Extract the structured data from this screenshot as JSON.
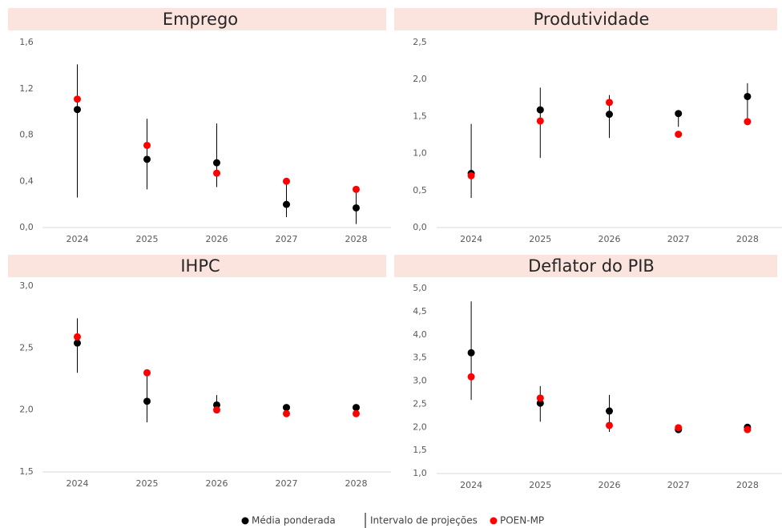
{
  "chart_data": [
    {
      "type": "dot-range",
      "title": "Emprego",
      "categories": [
        "2024",
        "2025",
        "2026",
        "2027",
        "2028"
      ],
      "series": [
        {
          "name": "Média ponderada",
          "color": "#000000",
          "values": [
            1.02,
            0.59,
            0.56,
            0.2,
            0.17
          ]
        },
        {
          "name": "Intervalo de projeções",
          "color": "#000000",
          "low": [
            0.26,
            0.33,
            0.35,
            0.09,
            0.03
          ],
          "high": [
            1.41,
            0.94,
            0.9,
            0.4,
            0.33
          ]
        },
        {
          "name": "POEN-MP",
          "color": "#ff0000",
          "values": [
            1.11,
            0.71,
            0.47,
            0.4,
            0.33
          ]
        }
      ],
      "ylim": [
        0,
        1.6
      ],
      "yticks": [
        {
          "value": 0,
          "label": "0,0"
        },
        {
          "value": 0.4,
          "label": "0,4"
        },
        {
          "value": 0.8,
          "label": "0,8"
        },
        {
          "value": 1.2,
          "label": "1,2"
        },
        {
          "value": 1.6,
          "label": "1,6"
        }
      ]
    },
    {
      "type": "dot-range",
      "title": "Produtividade",
      "categories": [
        "2024",
        "2025",
        "2026",
        "2027",
        "2028"
      ],
      "series": [
        {
          "name": "Média ponderada",
          "color": "#000000",
          "values": [
            0.73,
            1.59,
            1.53,
            1.54,
            1.77
          ]
        },
        {
          "name": "Intervalo de projeções",
          "color": "#000000",
          "low": [
            0.4,
            0.94,
            1.21,
            1.36,
            1.43
          ],
          "high": [
            1.4,
            1.89,
            1.79,
            1.57,
            1.95
          ]
        },
        {
          "name": "POEN-MP",
          "color": "#ff0000",
          "values": [
            0.7,
            1.44,
            1.69,
            1.26,
            1.43
          ]
        }
      ],
      "ylim": [
        0,
        2.5
      ],
      "yticks": [
        {
          "value": 0,
          "label": "0,0"
        },
        {
          "value": 0.5,
          "label": "0,5"
        },
        {
          "value": 1,
          "label": "1,0"
        },
        {
          "value": 1.5,
          "label": "1,5"
        },
        {
          "value": 2,
          "label": "2,0"
        },
        {
          "value": 2.5,
          "label": "2,5"
        }
      ]
    },
    {
      "type": "dot-range",
      "title": "IHPC",
      "categories": [
        "2024",
        "2025",
        "2026",
        "2027",
        "2028"
      ],
      "series": [
        {
          "name": "Média ponderada",
          "color": "#000000",
          "values": [
            2.54,
            2.07,
            2.04,
            2.02,
            2.02
          ]
        },
        {
          "name": "Intervalo de projeções",
          "color": "#000000",
          "low": [
            2.3,
            1.9,
            1.98,
            1.97,
            1.97
          ],
          "high": [
            2.74,
            2.3,
            2.12,
            2.02,
            2.02
          ]
        },
        {
          "name": "POEN-MP",
          "color": "#ff0000",
          "values": [
            2.59,
            2.3,
            2.0,
            1.97,
            1.97
          ]
        }
      ],
      "ylim": [
        1.5,
        3.0
      ],
      "yticks": [
        {
          "value": 1.5,
          "label": "1,5"
        },
        {
          "value": 2,
          "label": "2,0"
        },
        {
          "value": 2.5,
          "label": "2,5"
        },
        {
          "value": 3,
          "label": "3,0"
        }
      ]
    },
    {
      "type": "dot-range",
      "title": "Deflator do PIB",
      "categories": [
        "2024",
        "2025",
        "2026",
        "2027",
        "2028"
      ],
      "series": [
        {
          "name": "Média ponderada",
          "color": "#000000",
          "values": [
            3.61,
            2.52,
            2.35,
            1.95,
            2.0
          ]
        },
        {
          "name": "Intervalo de projeções",
          "color": "#000000",
          "low": [
            2.59,
            2.12,
            1.9,
            1.95,
            1.95
          ],
          "high": [
            4.72,
            2.89,
            2.7,
            1.99,
            2.0
          ]
        },
        {
          "name": "POEN-MP",
          "color": "#ff0000",
          "values": [
            3.09,
            2.63,
            2.04,
            1.99,
            1.95
          ]
        }
      ],
      "ylim": [
        1.0,
        5.0
      ],
      "yticks": [
        {
          "value": 1,
          "label": "1,0"
        },
        {
          "value": 1.5,
          "label": "1,5"
        },
        {
          "value": 2,
          "label": "2,0"
        },
        {
          "value": 2.5,
          "label": "2,5"
        },
        {
          "value": 3,
          "label": "3,0"
        },
        {
          "value": 3.5,
          "label": "3,5"
        },
        {
          "value": 4,
          "label": "4,0"
        },
        {
          "value": 4.5,
          "label": "4,5"
        },
        {
          "value": 5,
          "label": "5,0"
        }
      ]
    }
  ]
}
